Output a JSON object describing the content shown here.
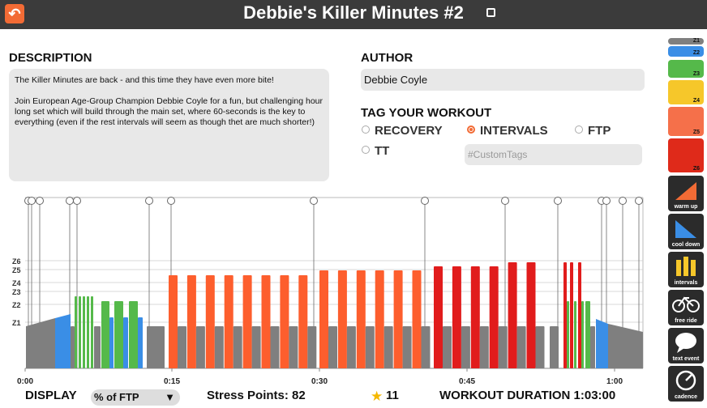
{
  "header": {
    "title": "Debbie's Killer Minutes #2",
    "back_icon": "back-arrow-icon",
    "edit_icon": "edit-icon"
  },
  "description": {
    "label": "DESCRIPTION",
    "para1": "The Killer Minutes are back - and this time they have even more bite!",
    "para2": "Join European Age-Group Champion Debbie Coyle for a fun, but challenging hour long set which will build through the main set, where 60-seconds is the key to everything (even if the rest intervals will seem as though thet are much shorter!)"
  },
  "author": {
    "label": "AUTHOR",
    "value": "Debbie Coyle"
  },
  "tags": {
    "label": "TAG YOUR WORKOUT",
    "options": [
      {
        "label": "RECOVERY",
        "selected": false
      },
      {
        "label": "INTERVALS",
        "selected": true
      },
      {
        "label": "FTP",
        "selected": false
      },
      {
        "label": "TT",
        "selected": false
      }
    ],
    "custom_placeholder": "#CustomTags",
    "accent": "#f26b35"
  },
  "chart": {
    "zone_labels": [
      "Z6",
      "Z5",
      "Z4",
      "Z3",
      "Z2",
      "Z1"
    ],
    "time_labels": [
      "0:00",
      "0:15",
      "0:30",
      "0:45",
      "1:00"
    ],
    "colors": {
      "Z1": "#7f7f7f",
      "Z2": "#3a8ee6",
      "Z3": "#55b94a",
      "Z4": "#f6c72a",
      "Z5": "#fd5e2d",
      "Z6": "#e11c1c"
    }
  },
  "footer": {
    "display_label": "DISPLAY",
    "display_value": "% of FTP",
    "stress_points": "Stress Points: 82",
    "rating": "11",
    "duration": "WORKOUT DURATION 1:03:00"
  },
  "palette": {
    "zones": [
      {
        "label": "Z1",
        "color": "#7f7f7f"
      },
      {
        "label": "Z2",
        "color": "#3a8ee6"
      },
      {
        "label": "Z3",
        "color": "#55b94a"
      },
      {
        "label": "Z4",
        "color": "#f6c72a"
      },
      {
        "label": "Z5",
        "color": "#f5704a"
      },
      {
        "label": "Z6",
        "color": "#df2a1a"
      }
    ],
    "tools": [
      {
        "label": "warm up",
        "icon": "warm-up-icon"
      },
      {
        "label": "cool down",
        "icon": "cool-down-icon"
      },
      {
        "label": "intervals",
        "icon": "intervals-icon"
      },
      {
        "label": "free ride",
        "icon": "bicycle-icon"
      },
      {
        "label": "text event",
        "icon": "speech-bubble-icon"
      },
      {
        "label": "cadence",
        "icon": "cadence-gauge-icon"
      }
    ]
  }
}
